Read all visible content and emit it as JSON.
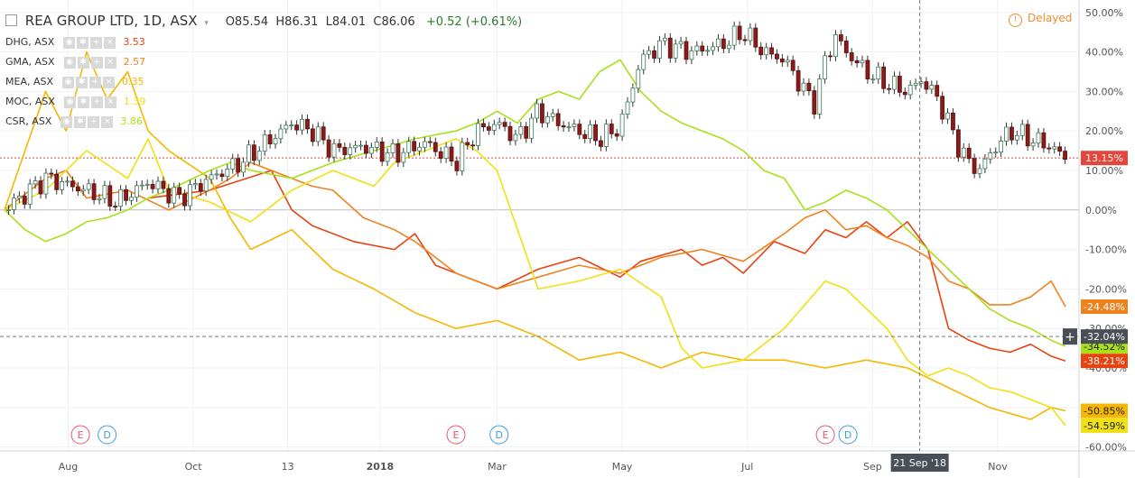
{
  "header": {
    "title": "REA GROUP LTD, 1D, ASX",
    "open": "O85.54",
    "high": "H86.31",
    "low": "L84.01",
    "close": "C86.06",
    "change": "+0.52 (+0.61%)"
  },
  "comparisons": [
    {
      "label": "DHG, ASX",
      "value": "3.53",
      "color": "#e8430f"
    },
    {
      "label": "GMA, ASX",
      "value": "2.57",
      "color": "#f0821e"
    },
    {
      "label": "MEA, ASX",
      "value": "0.35",
      "color": "#f5b700"
    },
    {
      "label": "MOC, ASX",
      "value": "1.39",
      "color": "#f0e014"
    },
    {
      "label": "CSR, ASX",
      "value": "3.86",
      "color": "#a8e01a"
    }
  ],
  "status": {
    "delayed_label": "Delayed",
    "info_icon": "info-circle-icon"
  },
  "chart_data": {
    "type": "line",
    "y_unit": "%",
    "ylim": [
      -61,
      52
    ],
    "y_ticks": [
      "50.00%",
      "40.00%",
      "30.00%",
      "20.00%",
      "10.00%",
      "0.00%",
      "-10.00%",
      "-20.00%",
      "-30.00%",
      "-40.00%",
      "-50.00%",
      "-60.00%"
    ],
    "y_tick_values": [
      50,
      40,
      30,
      20,
      10,
      0,
      -10,
      -20,
      -30,
      -40,
      -50,
      -60
    ],
    "x_ticks": [
      "Aug",
      "Oct",
      "13",
      "2018",
      "Mar",
      "May",
      "Jul",
      "Sep",
      "Nov"
    ],
    "x_tick_days": [
      31,
      92,
      138,
      183,
      240,
      301,
      362,
      423,
      484
    ],
    "xlim_days": [
      0,
      517
    ],
    "crosshair": {
      "date_label": "21 Sep '18",
      "day": 446,
      "value_label": "-32.04%",
      "value": -32.04
    },
    "last_value_labels": [
      {
        "text": "13.15%",
        "value": 13.15,
        "color": "#e4463c"
      },
      {
        "text": "-24.48%",
        "value": -24.48,
        "color": "#f0821e"
      },
      {
        "text": "-34.52%",
        "value": -34.52,
        "color": "#a8e01a"
      },
      {
        "text": "-38.21%",
        "value": -38.21,
        "color": "#e8430f"
      },
      {
        "text": "-50.85%",
        "value": -50.85,
        "color": "#f5b700"
      },
      {
        "text": "-54.59%",
        "value": -54.59,
        "color": "#f0e014"
      }
    ],
    "price_line_value": 13.15,
    "events": [
      {
        "letter": "E",
        "day": 37,
        "type": "earnings"
      },
      {
        "letter": "D",
        "day": 50,
        "type": "dividend"
      },
      {
        "letter": "E",
        "day": 220,
        "type": "earnings"
      },
      {
        "letter": "D",
        "day": 241,
        "type": "dividend"
      },
      {
        "letter": "E",
        "day": 400,
        "type": "earnings"
      },
      {
        "letter": "D",
        "day": 411,
        "type": "dividend"
      }
    ],
    "main_series": {
      "name": "REA GROUP LTD",
      "type": "candlestick",
      "x": [
        0,
        20,
        40,
        55,
        70,
        85,
        100,
        115,
        130,
        140,
        150,
        160,
        175,
        190,
        205,
        220,
        230,
        240,
        250,
        260,
        270,
        280,
        290,
        300,
        310,
        320,
        335,
        350,
        360,
        370,
        380,
        390,
        395,
        400,
        405,
        410,
        420,
        430,
        440,
        447,
        455,
        460,
        465,
        470,
        475,
        480,
        490,
        500,
        510,
        517
      ],
      "y": [
        0,
        8,
        5,
        2,
        7,
        3,
        8,
        12,
        18,
        22,
        20,
        15,
        16,
        14,
        17,
        12,
        20,
        22,
        18,
        25,
        22,
        20,
        18,
        21,
        38,
        42,
        40,
        42,
        45,
        40,
        38,
        30,
        27,
        38,
        44,
        40,
        35,
        32,
        30,
        33,
        28,
        22,
        16,
        12,
        10,
        14,
        20,
        18,
        16,
        13.15
      ]
    },
    "series": [
      {
        "name": "DHG, ASX",
        "color": "#e8430f",
        "x": [
          70,
          100,
          130,
          140,
          150,
          170,
          190,
          200,
          210,
          220,
          240,
          260,
          280,
          300,
          310,
          330,
          340,
          350,
          360,
          375,
          390,
          400,
          410,
          420,
          430,
          440,
          450,
          460,
          470,
          480,
          490,
          500,
          510,
          517
        ],
        "y": [
          3,
          5,
          10,
          0,
          -4,
          -8,
          -10,
          -6,
          -14,
          -16,
          -20,
          -15,
          -12,
          -17,
          -13,
          -10,
          -14,
          -12,
          -16,
          -8,
          -11,
          -5,
          -7,
          -3,
          -7,
          -3,
          -10,
          -30,
          -33,
          -35,
          -36,
          -34,
          -37,
          -38.21
        ]
      },
      {
        "name": "GMA, ASX",
        "color": "#f0821e",
        "x": [
          0,
          20,
          30,
          40,
          60,
          80,
          100,
          110,
          120,
          130,
          140,
          150,
          160,
          175,
          190,
          200,
          210,
          220,
          230,
          240,
          260,
          280,
          300,
          320,
          340,
          360,
          380,
          390,
          400,
          410,
          420,
          430,
          440,
          450,
          460,
          470,
          480,
          490,
          500,
          510,
          517
        ],
        "y": [
          0,
          8,
          10,
          3,
          5,
          0,
          5,
          8,
          12,
          10,
          8,
          6,
          5,
          -2,
          -5,
          -8,
          -12,
          -16,
          -18,
          -20,
          -17,
          -14,
          -16,
          -12,
          -10,
          -13,
          -6,
          -2,
          0,
          -5,
          -4,
          -7,
          -9,
          -12,
          -18,
          -20,
          -24,
          -24,
          -22,
          -18,
          -24.48
        ]
      },
      {
        "name": "MEA, ASX",
        "color": "#f5b700",
        "x": [
          0,
          10,
          20,
          30,
          40,
          50,
          60,
          70,
          80,
          100,
          110,
          120,
          140,
          160,
          180,
          200,
          210,
          220,
          240,
          260,
          280,
          300,
          320,
          340,
          360,
          380,
          400,
          420,
          440,
          460,
          480,
          500,
          510,
          517
        ],
        "y": [
          0,
          15,
          30,
          20,
          40,
          28,
          35,
          20,
          15,
          8,
          -2,
          -10,
          -5,
          -15,
          -20,
          -26,
          -28,
          -30,
          -28,
          -32,
          -38,
          -36,
          -40,
          -36,
          -38,
          -38,
          -40,
          -38,
          -40,
          -45,
          -50,
          -53,
          -50,
          -50.85
        ]
      },
      {
        "name": "MOC, ASX",
        "color": "#f0e014",
        "x": [
          0,
          20,
          40,
          60,
          70,
          80,
          100,
          120,
          140,
          160,
          180,
          190,
          200,
          210,
          220,
          230,
          240,
          250,
          260,
          280,
          300,
          320,
          330,
          340,
          360,
          380,
          400,
          410,
          420,
          430,
          440,
          450,
          460,
          470,
          480,
          490,
          500,
          510,
          517
        ],
        "y": [
          0,
          5,
          15,
          8,
          18,
          5,
          2,
          -3,
          5,
          10,
          6,
          12,
          14,
          16,
          18,
          15,
          10,
          -5,
          -20,
          -18,
          -15,
          -22,
          -35,
          -40,
          -38,
          -30,
          -18,
          -20,
          -25,
          -30,
          -38,
          -42,
          -40,
          -42,
          -45,
          -46,
          -48,
          -50,
          -54.59
        ]
      },
      {
        "name": "CSR, ASX",
        "color": "#a8e01a",
        "x": [
          0,
          10,
          20,
          30,
          40,
          50,
          60,
          70,
          80,
          100,
          110,
          120,
          140,
          160,
          180,
          200,
          220,
          230,
          240,
          250,
          260,
          270,
          280,
          290,
          300,
          310,
          320,
          330,
          340,
          350,
          360,
          370,
          380,
          390,
          400,
          410,
          420,
          430,
          440,
          450,
          460,
          470,
          480,
          490,
          500,
          510,
          517
        ],
        "y": [
          0,
          -5,
          -8,
          -6,
          -3,
          -2,
          0,
          3,
          5,
          10,
          12,
          10,
          8,
          12,
          15,
          18,
          20,
          22,
          25,
          22,
          28,
          30,
          28,
          35,
          38,
          30,
          25,
          22,
          20,
          18,
          15,
          10,
          8,
          0,
          2,
          5,
          3,
          0,
          -5,
          -10,
          -15,
          -20,
          -25,
          -28,
          -30,
          -33,
          -34.52
        ]
      }
    ]
  }
}
